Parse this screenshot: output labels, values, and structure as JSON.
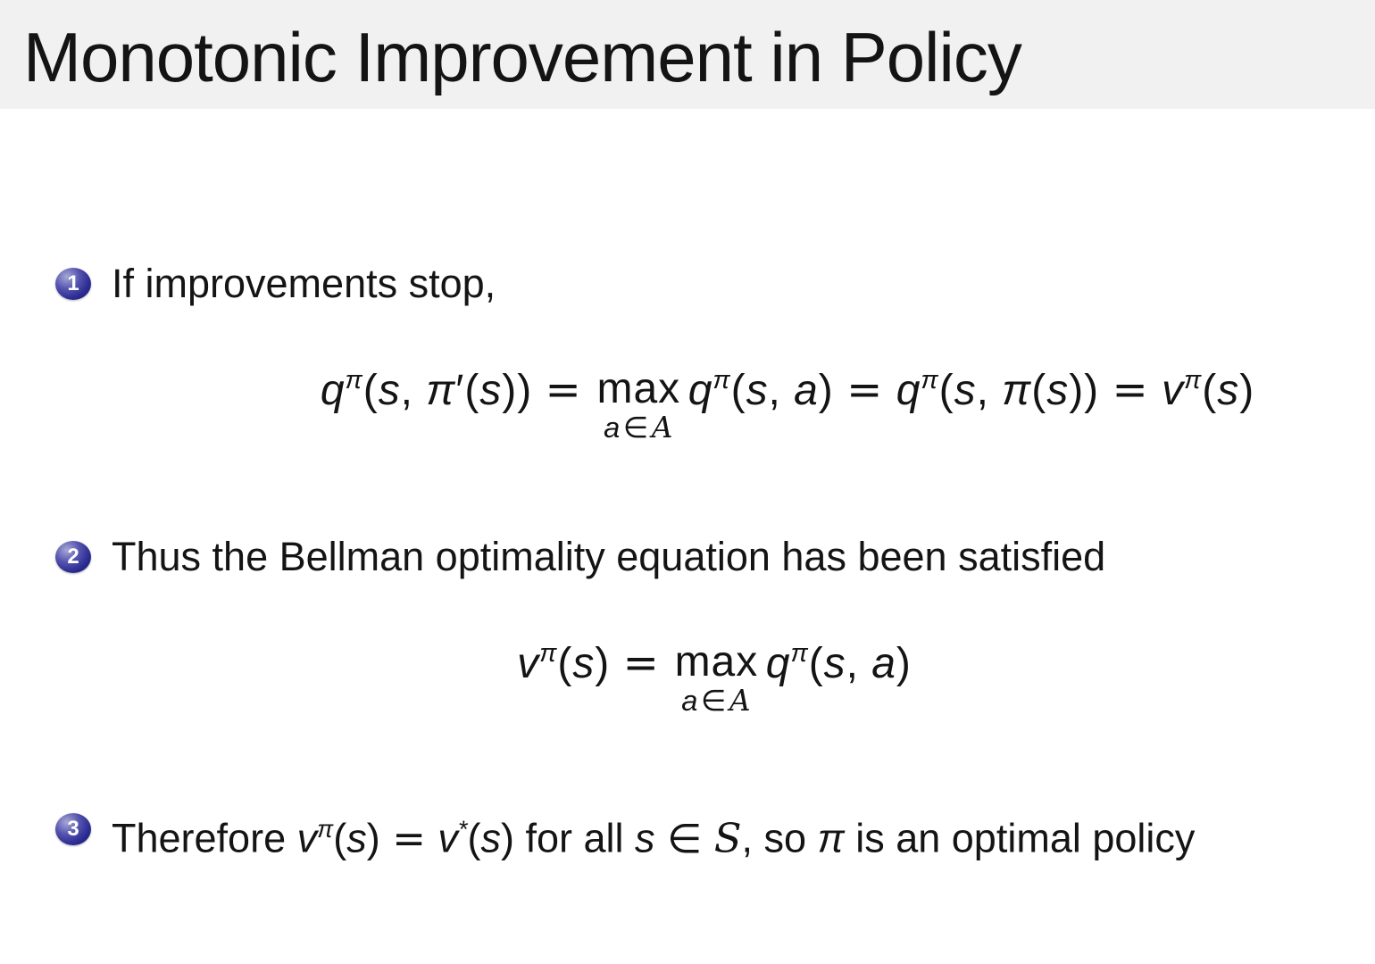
{
  "slide": {
    "title": "Monotonic Improvement in Policy",
    "colors": {
      "title_bar_bg": "#f1f1f1",
      "body_bg": "#ffffff",
      "text": "#141414",
      "ball_main": "#2b2b92",
      "ball_highlight": "#a8a8d8",
      "ball_dark": "#171768",
      "ball_number": "#ffffff"
    },
    "items": [
      {
        "number": "1",
        "tokens": [
          {
            "k": "t",
            "t": "If improvements stop,"
          }
        ]
      },
      {
        "number": "2",
        "tokens": [
          {
            "k": "t",
            "t": "Thus the Bellman optimality equation has been satisfied"
          }
        ]
      },
      {
        "number": "3",
        "tokens": [
          {
            "k": "t",
            "t": "Therefore "
          },
          {
            "k": "v",
            "t": "v"
          },
          {
            "k": "s",
            "t": "π"
          },
          {
            "k": "u",
            "t": "("
          },
          {
            "k": "v",
            "t": "s"
          },
          {
            "k": "u",
            "t": ")"
          },
          {
            "k": "r",
            "t": "="
          },
          {
            "k": "v",
            "t": "v"
          },
          {
            "k": "s",
            "t": "*"
          },
          {
            "k": "u",
            "t": "("
          },
          {
            "k": "v",
            "t": "s"
          },
          {
            "k": "u",
            "t": ")"
          },
          {
            "k": "t",
            "t": " for all "
          },
          {
            "k": "v",
            "t": "s"
          },
          {
            "k": "r",
            "t": "∈"
          },
          {
            "k": "c",
            "t": "S"
          },
          {
            "k": "t",
            "t": ", so "
          },
          {
            "k": "v",
            "t": "π"
          },
          {
            "k": "t",
            "t": " is an optimal policy"
          }
        ]
      }
    ],
    "formulas": [
      {
        "tokens": [
          {
            "k": "v",
            "t": "q"
          },
          {
            "k": "s",
            "t": "π"
          },
          {
            "k": "u",
            "t": "("
          },
          {
            "k": "v",
            "t": "s"
          },
          {
            "k": "u",
            "t": ", "
          },
          {
            "k": "v",
            "t": "π"
          },
          {
            "k": "u",
            "t": "′"
          },
          {
            "k": "u",
            "t": "("
          },
          {
            "k": "v",
            "t": "s"
          },
          {
            "k": "u",
            "t": "))"
          },
          {
            "k": "r",
            "t": "="
          },
          {
            "k": "m",
            "op": "max",
            "under": [
              {
                "k": "v",
                "t": "a"
              },
              {
                "k": "r",
                "t": "∈"
              },
              {
                "k": "c",
                "t": "A"
              }
            ]
          },
          {
            "k": "v",
            "t": "q"
          },
          {
            "k": "s",
            "t": "π"
          },
          {
            "k": "u",
            "t": "("
          },
          {
            "k": "v",
            "t": "s"
          },
          {
            "k": "u",
            "t": ", "
          },
          {
            "k": "v",
            "t": "a"
          },
          {
            "k": "u",
            "t": ")"
          },
          {
            "k": "r",
            "t": "="
          },
          {
            "k": "v",
            "t": "q"
          },
          {
            "k": "s",
            "t": "π"
          },
          {
            "k": "u",
            "t": "("
          },
          {
            "k": "v",
            "t": "s"
          },
          {
            "k": "u",
            "t": ", "
          },
          {
            "k": "v",
            "t": "π"
          },
          {
            "k": "u",
            "t": "("
          },
          {
            "k": "v",
            "t": "s"
          },
          {
            "k": "u",
            "t": "))"
          },
          {
            "k": "r",
            "t": "="
          },
          {
            "k": "v",
            "t": "v"
          },
          {
            "k": "s",
            "t": "π"
          },
          {
            "k": "u",
            "t": "("
          },
          {
            "k": "v",
            "t": "s"
          },
          {
            "k": "u",
            "t": ")"
          }
        ]
      },
      {
        "tokens": [
          {
            "k": "v",
            "t": "v"
          },
          {
            "k": "s",
            "t": "π"
          },
          {
            "k": "u",
            "t": "("
          },
          {
            "k": "v",
            "t": "s"
          },
          {
            "k": "u",
            "t": ")"
          },
          {
            "k": "r",
            "t": "="
          },
          {
            "k": "m",
            "op": "max",
            "under": [
              {
                "k": "v",
                "t": "a"
              },
              {
                "k": "r",
                "t": "∈"
              },
              {
                "k": "c",
                "t": "A"
              }
            ]
          },
          {
            "k": "v",
            "t": "q"
          },
          {
            "k": "s",
            "t": "π"
          },
          {
            "k": "u",
            "t": "("
          },
          {
            "k": "v",
            "t": "s"
          },
          {
            "k": "u",
            "t": ", "
          },
          {
            "k": "v",
            "t": "a"
          },
          {
            "k": "u",
            "t": ")"
          }
        ]
      }
    ]
  }
}
